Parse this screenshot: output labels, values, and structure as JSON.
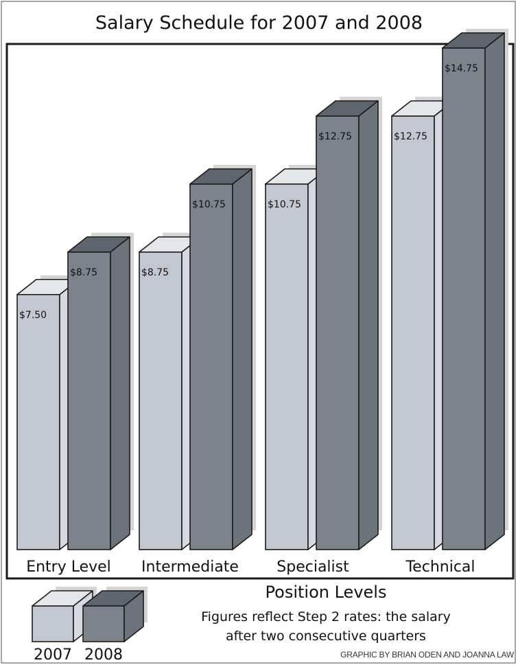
{
  "colors": {
    "y2007_front": "#c3c7cf",
    "y2007_side": "#d6d9e0",
    "y2007_top": "#e4e6ea",
    "y2008_front": "#7c838b",
    "y2008_side": "#6c737b",
    "y2008_top": "#5e656c",
    "shadow": "#d4d4d4",
    "stroke": "#1a1a1a"
  },
  "chart_data": {
    "type": "bar",
    "title": "Salary Schedule for 2007 and 2008",
    "xlabel": "Position Levels",
    "ylabel": "",
    "categories": [
      "Entry Level",
      "Intermediate",
      "Specialist",
      "Technical"
    ],
    "series": [
      {
        "name": "2007",
        "values": [
          7.5,
          8.75,
          10.75,
          12.75
        ],
        "labels": [
          "$7.50",
          "$8.75",
          "$10.75",
          "$12.75"
        ]
      },
      {
        "name": "2008",
        "values": [
          8.75,
          10.75,
          12.75,
          14.75
        ],
        "labels": [
          "$8.75",
          "$10.75",
          "$12.75",
          "$14.75"
        ]
      }
    ],
    "ylim": [
      0,
      16
    ],
    "grid": false,
    "legend": "bottom-left",
    "note": "Figures reflect Step 2 rates:  the salary after two consecutive quarters",
    "note_lines": [
      "Figures reflect Step 2 rates:  the salary",
      "after two consecutive quarters"
    ]
  },
  "credit": "GRAPHIC BY BRIAN ODEN AND JOANNA LAW"
}
